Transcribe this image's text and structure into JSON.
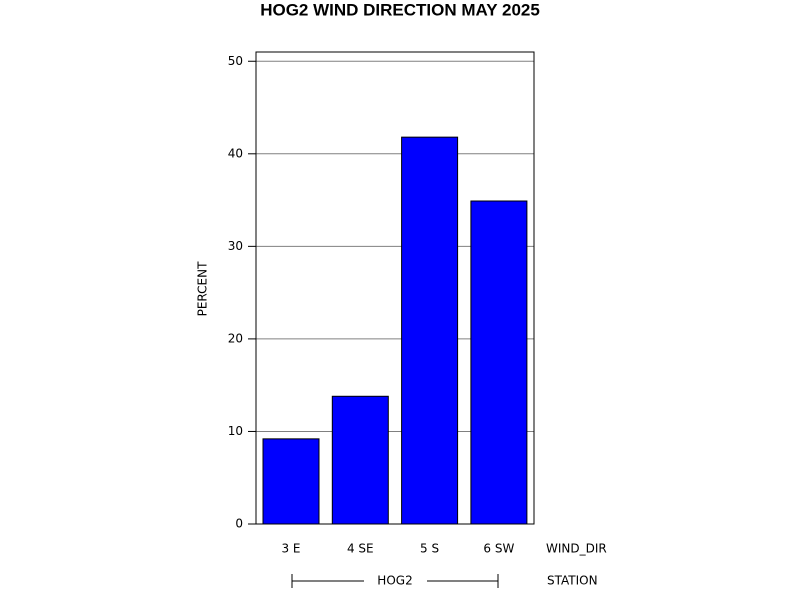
{
  "chart_data": {
    "type": "bar",
    "title": "HOG2 WIND DIRECTION MAY 2025",
    "ylabel": "PERCENT",
    "xlabel": "WIND_DIR",
    "group_label": "HOG2",
    "group_axis_label": "STATION",
    "categories": [
      "3 E",
      "4 SE",
      "5 S",
      "6 SW"
    ],
    "values": [
      9.2,
      13.8,
      41.8,
      34.9
    ],
    "color": "#0000ff",
    "ylim": [
      0,
      51
    ],
    "yticks": [
      0,
      10,
      20,
      30,
      40,
      50
    ],
    "grid": true
  }
}
